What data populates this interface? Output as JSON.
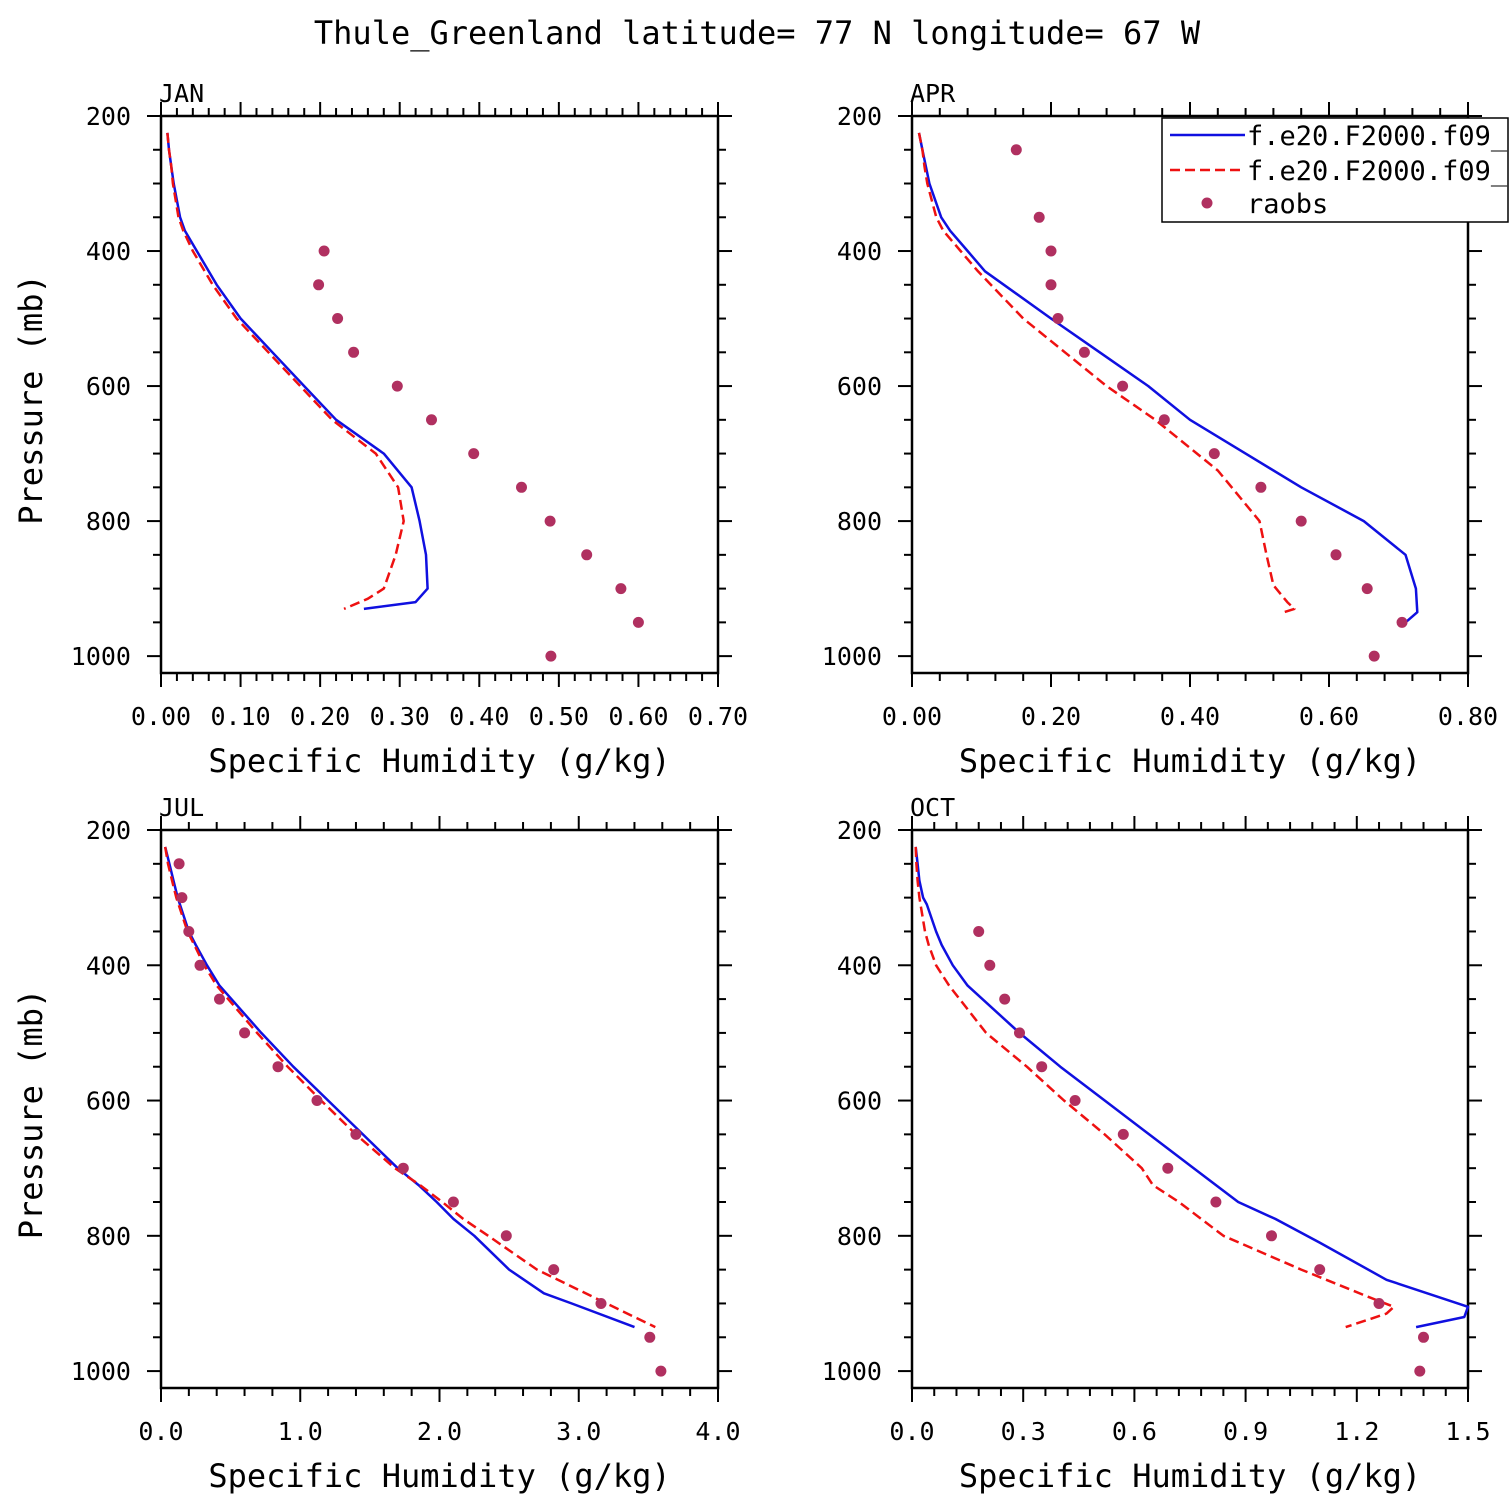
{
  "figure_title": "Thule_Greenland  latitude= 77 N longitude= 67 W",
  "legend": {
    "entries": [
      {
        "label": "f.e20.F2000.f09_",
        "color": "#1010e0",
        "style": "solid"
      },
      {
        "label": "f.e20.F2000.f09_",
        "color": "#ee1111",
        "style": "dashed"
      },
      {
        "label": "raobs",
        "color": "#b03060",
        "style": "dot"
      }
    ]
  },
  "chart_data": [
    {
      "type": "line",
      "panel_title": "JAN",
      "xlabel": "Specific Humidity (g/kg)",
      "ylabel": "Pressure (mb)",
      "xlim": [
        0,
        0.7
      ],
      "ylim": [
        200,
        1025
      ],
      "xticks": [
        0,
        0.1,
        0.2,
        0.3,
        0.4,
        0.5,
        0.6,
        0.7
      ],
      "xtick_labels": [
        "0.00",
        "0.10",
        "0.20",
        "0.30",
        "0.40",
        "0.50",
        "0.60",
        "0.70"
      ],
      "yticks": [
        200,
        400,
        600,
        800,
        1000
      ],
      "ytick_labels": [
        "200",
        "400",
        "600",
        "800",
        "1000"
      ],
      "series": [
        {
          "name": "f.e20.F2000.f09_ (solid)",
          "p": [
            225,
            250,
            275,
            300,
            350,
            370,
            400,
            450,
            500,
            550,
            600,
            650,
            700,
            750,
            800,
            850,
            900,
            920,
            930
          ],
          "q": [
            0.008,
            0.01,
            0.013,
            0.016,
            0.024,
            0.03,
            0.045,
            0.07,
            0.1,
            0.14,
            0.18,
            0.22,
            0.28,
            0.315,
            0.325,
            0.333,
            0.335,
            0.32,
            0.255
          ]
        },
        {
          "name": "f.e20.F2000.f09_ (dashed)",
          "p": [
            225,
            250,
            275,
            300,
            350,
            370,
            400,
            450,
            500,
            550,
            600,
            650,
            700,
            750,
            800,
            850,
            900,
            915,
            930
          ],
          "q": [
            0.008,
            0.01,
            0.013,
            0.015,
            0.022,
            0.028,
            0.04,
            0.065,
            0.095,
            0.135,
            0.175,
            0.215,
            0.27,
            0.298,
            0.305,
            0.295,
            0.28,
            0.26,
            0.23
          ]
        },
        {
          "name": "raobs",
          "p": [
            400,
            450,
            500,
            550,
            600,
            650,
            700,
            750,
            800,
            850,
            900,
            950,
            1000
          ],
          "q": [
            0.205,
            0.198,
            0.222,
            0.242,
            0.297,
            0.34,
            0.393,
            0.453,
            0.489,
            0.535,
            0.578,
            0.6,
            0.49
          ]
        }
      ]
    },
    {
      "type": "line",
      "panel_title": "APR",
      "xlabel": "Specific Humidity (g/kg)",
      "ylabel": "Pressure (mb)",
      "xlim": [
        0,
        0.8
      ],
      "ylim": [
        200,
        1025
      ],
      "xticks": [
        0,
        0.2,
        0.4,
        0.6,
        0.8
      ],
      "xtick_labels": [
        "0.00",
        "0.20",
        "0.40",
        "0.60",
        "0.80"
      ],
      "yticks": [
        200,
        400,
        600,
        800,
        1000
      ],
      "ytick_labels": [
        "200",
        "400",
        "600",
        "800",
        "1000"
      ],
      "series": [
        {
          "name": "f.e20.F2000.f09_ (solid)",
          "p": [
            225,
            250,
            275,
            300,
            350,
            370,
            400,
            430,
            500,
            550,
            600,
            650,
            700,
            750,
            800,
            850,
            900,
            935,
            950
          ],
          "q": [
            0.01,
            0.015,
            0.02,
            0.025,
            0.042,
            0.055,
            0.08,
            0.105,
            0.2,
            0.27,
            0.34,
            0.4,
            0.48,
            0.56,
            0.65,
            0.71,
            0.725,
            0.727,
            0.71
          ]
        },
        {
          "name": "f.e20.F2000.f09_ (dashed)",
          "p": [
            225,
            250,
            275,
            300,
            350,
            370,
            400,
            430,
            500,
            550,
            600,
            650,
            700,
            725,
            750,
            800,
            850,
            895,
            920,
            930,
            935
          ],
          "q": [
            0.01,
            0.015,
            0.018,
            0.022,
            0.035,
            0.045,
            0.07,
            0.095,
            0.16,
            0.22,
            0.28,
            0.35,
            0.41,
            0.44,
            0.46,
            0.5,
            0.51,
            0.52,
            0.54,
            0.55,
            0.535
          ]
        },
        {
          "name": "raobs",
          "p": [
            250,
            350,
            400,
            450,
            500,
            550,
            600,
            650,
            700,
            750,
            800,
            850,
            900,
            950,
            1000
          ],
          "q": [
            0.15,
            0.183,
            0.2,
            0.2,
            0.21,
            0.248,
            0.303,
            0.363,
            0.435,
            0.502,
            0.56,
            0.61,
            0.655,
            0.705,
            0.665
          ]
        }
      ]
    },
    {
      "type": "line",
      "panel_title": "JUL",
      "xlabel": "Specific Humidity (g/kg)",
      "ylabel": "Pressure (mb)",
      "xlim": [
        0,
        4.0
      ],
      "ylim": [
        200,
        1025
      ],
      "xticks": [
        0,
        1,
        2,
        3,
        4
      ],
      "xtick_labels": [
        "0.0",
        "1.0",
        "2.0",
        "3.0",
        "4.0"
      ],
      "yticks": [
        200,
        400,
        600,
        800,
        1000
      ],
      "ytick_labels": [
        "200",
        "400",
        "600",
        "800",
        "1000"
      ],
      "series": [
        {
          "name": "f.e20.F2000.f09_ (solid)",
          "p": [
            225,
            250,
            275,
            300,
            350,
            370,
            400,
            430,
            500,
            550,
            600,
            650,
            700,
            725,
            750,
            775,
            800,
            850,
            885,
            900,
            935
          ],
          "q": [
            0.03,
            0.06,
            0.09,
            0.12,
            0.2,
            0.25,
            0.33,
            0.42,
            0.72,
            0.95,
            1.2,
            1.45,
            1.7,
            1.85,
            1.98,
            2.1,
            2.25,
            2.5,
            2.75,
            2.95,
            3.4
          ]
        },
        {
          "name": "f.e20.F2000.f09_ (dashed)",
          "p": [
            225,
            250,
            275,
            300,
            350,
            370,
            400,
            430,
            500,
            550,
            600,
            650,
            700,
            725,
            750,
            775,
            800,
            850,
            900,
            935
          ],
          "q": [
            0.03,
            0.05,
            0.08,
            0.11,
            0.19,
            0.24,
            0.31,
            0.4,
            0.69,
            0.91,
            1.15,
            1.4,
            1.68,
            1.86,
            2.02,
            2.17,
            2.35,
            2.7,
            3.2,
            3.55
          ]
        },
        {
          "name": "raobs",
          "p": [
            250,
            300,
            350,
            400,
            450,
            500,
            550,
            600,
            650,
            700,
            750,
            800,
            850,
            900,
            950,
            1000
          ],
          "q": [
            0.13,
            0.15,
            0.2,
            0.28,
            0.42,
            0.6,
            0.84,
            1.12,
            1.4,
            1.74,
            2.1,
            2.48,
            2.82,
            3.16,
            3.51,
            3.59
          ]
        }
      ]
    },
    {
      "type": "line",
      "panel_title": "OCT",
      "xlabel": "Specific Humidity (g/kg)",
      "ylabel": "Pressure (mb)",
      "xlim": [
        0,
        1.5
      ],
      "ylim": [
        200,
        1025
      ],
      "xticks": [
        0,
        0.3,
        0.6,
        0.9,
        1.2,
        1.5
      ],
      "xtick_labels": [
        "0.0",
        "0.3",
        "0.6",
        "0.9",
        "1.2",
        "1.5"
      ],
      "yticks": [
        200,
        400,
        600,
        800,
        1000
      ],
      "ytick_labels": [
        "200",
        "400",
        "600",
        "800",
        "1000"
      ],
      "series": [
        {
          "name": "f.e20.F2000.f09_ (solid)",
          "p": [
            225,
            250,
            275,
            300,
            310,
            350,
            370,
            400,
            430,
            500,
            550,
            600,
            650,
            700,
            750,
            775,
            810,
            865,
            905,
            920,
            935
          ],
          "q": [
            0.01,
            0.015,
            0.02,
            0.03,
            0.04,
            0.065,
            0.08,
            0.11,
            0.15,
            0.29,
            0.4,
            0.52,
            0.64,
            0.76,
            0.88,
            0.98,
            1.1,
            1.28,
            1.5,
            1.49,
            1.36
          ]
        },
        {
          "name": "f.e20.F2000.f09_ (dashed)",
          "p": [
            225,
            250,
            275,
            300,
            350,
            370,
            400,
            430,
            500,
            550,
            600,
            650,
            700,
            725,
            750,
            800,
            850,
            890,
            905,
            915,
            935
          ],
          "q": [
            0.01,
            0.012,
            0.015,
            0.02,
            0.035,
            0.045,
            0.065,
            0.1,
            0.2,
            0.31,
            0.41,
            0.52,
            0.62,
            0.65,
            0.72,
            0.84,
            1.05,
            1.23,
            1.3,
            1.28,
            1.17
          ]
        },
        {
          "name": "raobs",
          "p": [
            350,
            400,
            450,
            500,
            550,
            600,
            650,
            700,
            750,
            800,
            850,
            900,
            950,
            1000
          ],
          "q": [
            0.18,
            0.21,
            0.25,
            0.29,
            0.35,
            0.44,
            0.57,
            0.69,
            0.82,
            0.97,
            1.1,
            1.26,
            1.38,
            1.37
          ]
        }
      ]
    }
  ]
}
